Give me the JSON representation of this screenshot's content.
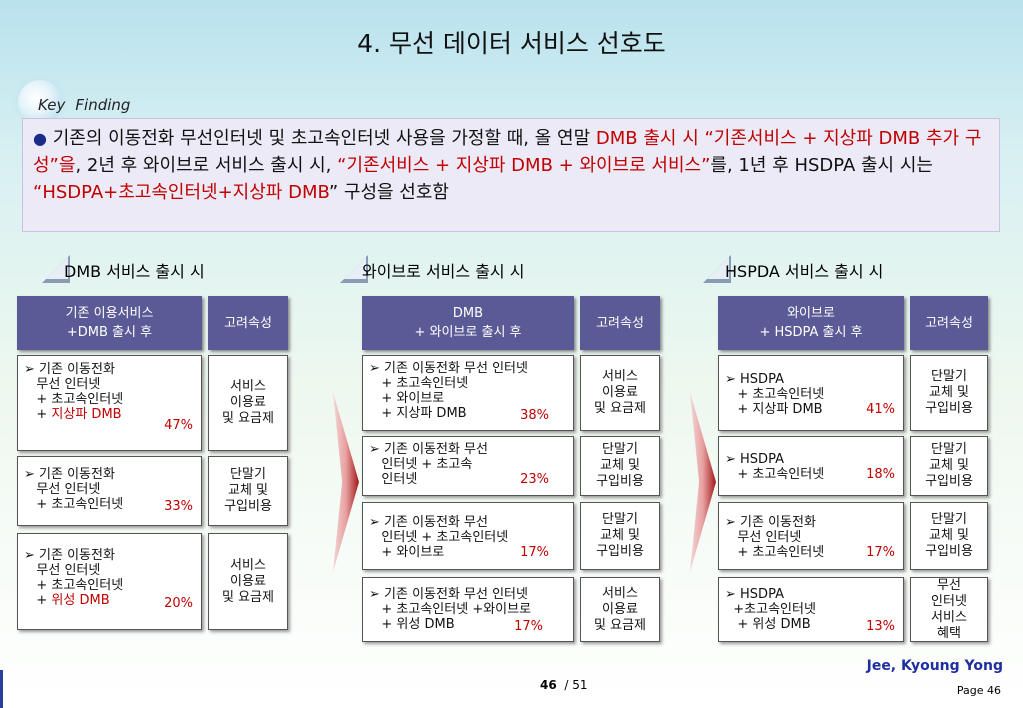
{
  "title": "4. 무선 데이터 서비스 선호도",
  "key_finding": {
    "label_key": "Key",
    "label_finding": "Finding",
    "seg1": "기존의 이동전화 무선인터넷 및 초고속인터넷 사용을 가정할 때, 올 연말 ",
    "seg2": "DMB 출시 시 “기존서비스 + 지상파 DMB 추가 구성”을",
    "seg3": ", 2년 후 와이브로 서비스 출시 시, ",
    "seg4": "“기존서비스 + 지상파 DMB + 와이브로 서비스”",
    "seg5": "를, 1년 후 HSDPA 출시 시는 ",
    "seg6": "“HSDPA+초고속인터넷+지상파 DMB",
    "seg7": "” 구성을 선호함"
  },
  "sections": [
    {
      "title": "DMB 서비스 출시 시",
      "header_left": "기존 이용서비스\n+DMB 출시 후",
      "header_right": "고려속성",
      "rows": [
        {
          "text": "➢ 기존 이동전화\n   무선 인터넷\n   + 초고속인터넷\n   + ",
          "red": "지상파 DMB",
          "pct": "47%",
          "attr": "서비스\n이용료\n및 요금제"
        },
        {
          "text": "➢ 기존 이동전화\n   무선 인터넷\n   + 초고속인터넷",
          "red": "",
          "pct": "33%",
          "attr": "단말기\n교체 및\n구입비용"
        },
        {
          "text": "➢ 기존 이동전화\n   무선 인터넷\n   + 초고속인터넷\n   + ",
          "red": "위성 DMB",
          "pct": "20%",
          "attr": "서비스\n이용료\n및 요금제"
        }
      ]
    },
    {
      "title": "와이브로 서비스 출시 시",
      "header_left": "DMB\n+ 와이브로 출시 후",
      "header_right": "고려속성",
      "rows": [
        {
          "text": "➢ 기존 이동전화 무선 인터넷\n   + 초고속인터넷\n   + 와이브로\n   + 지상파 DMB",
          "red": "",
          "pct": "38%",
          "attr": "서비스\n이용료\n및 요금제"
        },
        {
          "text": "➢ 기존 이동전화 무선\n   인터넷 + 초고속\n   인터넷",
          "red": "",
          "pct": "23%",
          "attr": "단말기\n교체 및\n구입비용"
        },
        {
          "text": "➢ 기존 이동전화 무선\n   인터넷 + 초고속인터넷\n   + 와이브로",
          "red": "",
          "pct": "17%",
          "attr": "단말기\n교체 및\n구입비용"
        },
        {
          "text": "➢ 기존 이동전화 무선 인터넷\n   + 초고속인터넷 +와이브로\n   + 위성 DMB",
          "red": "",
          "pct": "17%",
          "attr": "서비스\n이용료\n및 요금제"
        }
      ]
    },
    {
      "title": "HSPDA 서비스 출시 시",
      "header_left": "와이브로\n+ HSDPA 출시 후",
      "header_right": "고려속성",
      "rows": [
        {
          "text": "➢ HSDPA\n   + 초고속인터넷\n   + 지상파 DMB",
          "red": "",
          "pct": "41%",
          "attr": "단말기\n교체 및\n구입비용"
        },
        {
          "text": "➢ HSDPA\n   + 초고속인터넷",
          "red": "",
          "pct": "18%",
          "attr": "단말기\n교체 및\n구입비용"
        },
        {
          "text": "➢ 기존 이동전화\n   무선 인터넷\n   + 초고속인터넷",
          "red": "",
          "pct": "17%",
          "attr": "단말기\n교체 및\n구입비용"
        },
        {
          "text": "➢ HSDPA\n  +초고속인터넷\n   + 위성 DMB",
          "red": "",
          "pct": "13%",
          "attr": "무선\n인터넷\n서비스\n혜택"
        }
      ]
    }
  ],
  "footer": {
    "author": "Jee, Kyoung Yong",
    "page": "Page 46",
    "current": "46",
    "total": "/ 51"
  }
}
